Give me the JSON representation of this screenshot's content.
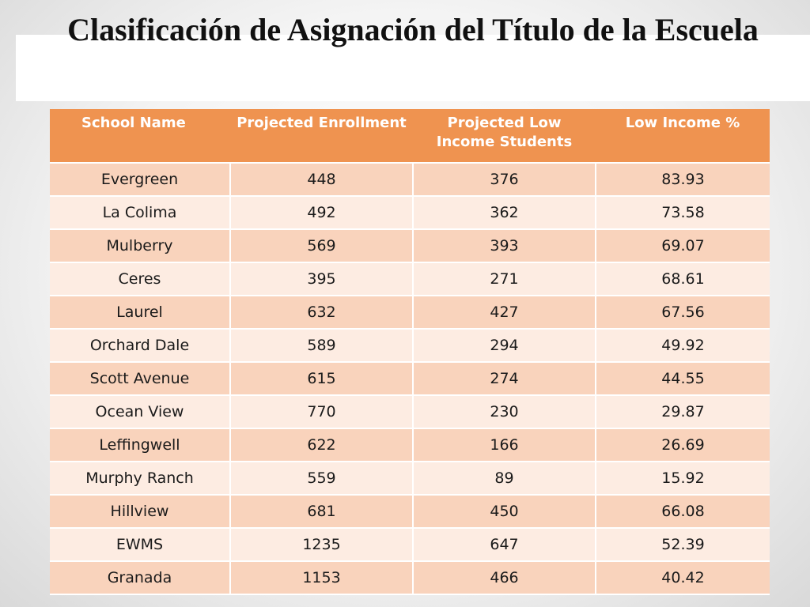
{
  "title": "Clasificación de Asignación del Título de la Escuela",
  "table": {
    "headers": [
      "School Name",
      "Projected Enrollment",
      "Projected Low Income Students",
      "Low Income %"
    ],
    "rows": [
      [
        "Evergreen",
        "448",
        "376",
        "83.93"
      ],
      [
        "La Colima",
        "492",
        "362",
        "73.58"
      ],
      [
        "Mulberry",
        "569",
        "393",
        "69.07"
      ],
      [
        "Ceres",
        "395",
        "271",
        "68.61"
      ],
      [
        "Laurel",
        "632",
        "427",
        "67.56"
      ],
      [
        "Orchard Dale",
        "589",
        "294",
        "49.92"
      ],
      [
        "Scott Avenue",
        "615",
        "274",
        "44.55"
      ],
      [
        "Ocean View",
        "770",
        "230",
        "29.87"
      ],
      [
        "Leffingwell",
        "622",
        "166",
        "26.69"
      ],
      [
        "Murphy Ranch",
        "559",
        "89",
        "15.92"
      ],
      [
        "Hillview",
        "681",
        "450",
        "66.08"
      ],
      [
        "EWMS",
        "1235",
        "647",
        "52.39"
      ],
      [
        "Granada",
        "1153",
        "466",
        "40.42"
      ]
    ]
  },
  "colors": {
    "header_bg": "#ef9350",
    "row_odd": "#f9d3bc",
    "row_even": "#fdece2"
  }
}
